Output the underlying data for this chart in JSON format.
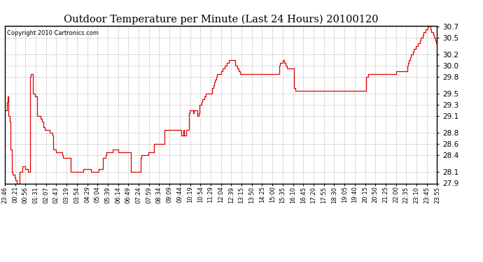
{
  "title": "Outdoor Temperature per Minute (Last 24 Hours) 20100120",
  "copyright": "Copyright 2010 Cartronics.com",
  "line_color": "#dd0000",
  "background_color": "#ffffff",
  "grid_color": "#bbbbbb",
  "ylim": [
    27.9,
    30.7
  ],
  "yticks": [
    27.9,
    28.1,
    28.4,
    28.6,
    28.8,
    29.1,
    29.3,
    29.5,
    29.8,
    30.0,
    30.2,
    30.5,
    30.7
  ],
  "xtick_labels": [
    "23:46",
    "00:21",
    "00:56",
    "01:31",
    "02:07",
    "02:43",
    "03:19",
    "03:54",
    "04:29",
    "05:04",
    "05:39",
    "06:14",
    "06:49",
    "07:24",
    "07:59",
    "08:34",
    "09:09",
    "09:44",
    "10:19",
    "10:54",
    "11:29",
    "12:04",
    "12:39",
    "13:15",
    "13:50",
    "14:25",
    "15:00",
    "15:35",
    "16:10",
    "16:45",
    "17:20",
    "17:55",
    "18:30",
    "19:05",
    "19:40",
    "20:15",
    "20:50",
    "21:25",
    "22:00",
    "22:35",
    "23:10",
    "23:45",
    "23:55"
  ],
  "data_y": [
    29.2,
    29.2,
    29.35,
    29.45,
    29.1,
    29.0,
    28.5,
    28.1,
    28.05,
    28.05,
    28.0,
    27.95,
    27.9,
    27.9,
    27.9,
    28.1,
    28.1,
    28.1,
    28.2,
    28.2,
    28.2,
    28.15,
    28.15,
    28.15,
    28.1,
    28.1,
    29.8,
    29.85,
    29.85,
    29.5,
    29.5,
    29.45,
    29.45,
    29.1,
    29.1,
    29.1,
    29.1,
    29.05,
    29.0,
    29.0,
    28.9,
    28.85,
    28.85,
    28.85,
    28.85,
    28.85,
    28.8,
    28.8,
    28.8,
    28.75,
    28.5,
    28.5,
    28.5,
    28.45,
    28.45,
    28.45,
    28.45,
    28.45,
    28.45,
    28.4,
    28.35,
    28.35,
    28.35,
    28.35,
    28.35,
    28.35,
    28.35,
    28.35,
    28.1,
    28.1,
    28.1,
    28.1,
    28.1,
    28.1,
    28.1,
    28.1,
    28.1,
    28.1,
    28.1,
    28.1,
    28.1,
    28.15,
    28.15,
    28.15,
    28.15,
    28.15,
    28.15,
    28.15,
    28.15,
    28.1,
    28.1,
    28.1,
    28.1,
    28.1,
    28.1,
    28.1,
    28.1,
    28.15,
    28.15,
    28.15,
    28.15,
    28.35,
    28.35,
    28.35,
    28.4,
    28.45,
    28.45,
    28.45,
    28.45,
    28.45,
    28.45,
    28.5,
    28.5,
    28.5,
    28.5,
    28.5,
    28.5,
    28.45,
    28.45,
    28.45,
    28.45,
    28.45,
    28.45,
    28.45,
    28.45,
    28.45,
    28.45,
    28.45,
    28.45,
    28.45,
    28.1,
    28.1,
    28.1,
    28.1,
    28.1,
    28.1,
    28.1,
    28.1,
    28.1,
    28.1,
    28.35,
    28.4,
    28.4,
    28.4,
    28.4,
    28.4,
    28.4,
    28.4,
    28.45,
    28.45,
    28.45,
    28.45,
    28.45,
    28.45,
    28.6,
    28.6,
    28.6,
    28.6,
    28.6,
    28.6,
    28.6,
    28.6,
    28.6,
    28.6,
    28.6,
    28.85,
    28.85,
    28.85,
    28.85,
    28.85,
    28.85,
    28.85,
    28.85,
    28.85,
    28.85,
    28.85,
    28.85,
    28.85,
    28.85,
    28.85,
    28.85,
    28.85,
    28.75,
    28.75,
    28.85,
    28.75,
    28.75,
    28.85,
    28.85,
    28.85,
    29.15,
    29.2,
    29.2,
    29.2,
    29.15,
    29.2,
    29.2,
    29.2,
    29.2,
    29.1,
    29.15,
    29.3,
    29.3,
    29.35,
    29.4,
    29.4,
    29.45,
    29.5,
    29.5,
    29.5,
    29.5,
    29.5,
    29.5,
    29.5,
    29.6,
    29.65,
    29.7,
    29.75,
    29.8,
    29.85,
    29.85,
    29.85,
    29.85,
    29.9,
    29.9,
    29.95,
    29.95,
    30.0,
    30.0,
    30.05,
    30.05,
    30.1,
    30.1,
    30.1,
    30.1,
    30.1,
    30.1,
    30.1,
    30.0,
    30.0,
    29.95,
    29.9,
    29.9,
    29.85,
    29.85,
    29.85,
    29.85,
    29.85,
    29.85,
    29.85,
    29.85,
    29.85,
    29.85,
    29.85,
    29.85,
    29.85,
    29.85,
    29.85,
    29.85,
    29.85,
    29.85,
    29.85,
    29.85,
    29.85,
    29.85,
    29.85,
    29.85,
    29.85,
    29.85,
    29.85,
    29.85,
    29.85,
    29.85,
    29.85,
    29.85,
    29.85,
    29.85,
    29.85,
    29.85,
    29.85,
    29.85,
    29.85,
    29.85,
    30.0,
    30.05,
    30.05,
    30.05,
    30.1,
    30.05,
    30.05,
    30.0,
    29.95,
    29.95,
    29.95,
    29.95,
    29.95,
    29.95,
    29.95,
    29.6,
    29.6,
    29.55,
    29.55,
    29.55,
    29.55,
    29.55,
    29.55,
    29.55,
    29.55,
    29.55,
    29.55,
    29.55,
    29.55,
    29.55,
    29.55,
    29.55,
    29.55,
    29.55,
    29.55,
    29.55,
    29.55,
    29.55,
    29.55,
    29.55,
    29.55,
    29.55,
    29.55,
    29.55,
    29.55,
    29.55,
    29.55,
    29.55,
    29.55,
    29.55,
    29.55,
    29.55,
    29.55,
    29.55,
    29.55,
    29.55,
    29.55,
    29.55,
    29.55,
    29.55,
    29.55,
    29.55,
    29.55,
    29.55,
    29.55,
    29.55,
    29.55,
    29.55,
    29.55,
    29.55,
    29.55,
    29.55,
    29.55,
    29.55,
    29.55,
    29.55,
    29.55,
    29.55,
    29.55,
    29.55,
    29.55,
    29.55,
    29.55,
    29.55,
    29.55,
    29.55,
    29.55,
    29.55,
    29.55,
    29.55,
    29.8,
    29.8,
    29.85,
    29.85,
    29.85,
    29.85,
    29.85,
    29.85,
    29.85,
    29.85,
    29.85,
    29.85,
    29.85,
    29.85,
    29.85,
    29.85,
    29.85,
    29.85,
    29.85,
    29.85,
    29.85,
    29.85,
    29.85,
    29.85,
    29.85,
    29.85,
    29.85,
    29.85,
    29.85,
    29.85,
    29.85,
    29.9,
    29.9,
    29.9,
    29.9,
    29.9,
    29.9,
    29.9,
    29.9,
    29.9,
    29.9,
    29.9,
    30.0,
    30.05,
    30.1,
    30.15,
    30.2,
    30.2,
    30.25,
    30.3,
    30.3,
    30.35,
    30.35,
    30.4,
    30.4,
    30.45,
    30.5,
    30.5,
    30.55,
    30.6,
    30.6,
    30.65,
    30.65,
    30.7,
    30.7,
    30.75,
    30.65,
    30.6,
    30.6,
    30.55,
    30.5,
    30.45,
    30.4,
    30.4
  ],
  "figwidth": 6.9,
  "figheight": 3.75,
  "dpi": 100
}
